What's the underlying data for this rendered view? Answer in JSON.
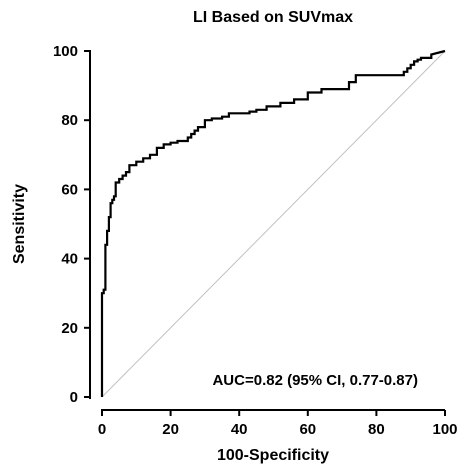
{
  "chart_data": {
    "type": "line",
    "title": "LI Based on SUVmax",
    "xlabel": "100-Specificity",
    "ylabel": "Sensitivity",
    "xlim": [
      0,
      100
    ],
    "ylim": [
      0,
      100
    ],
    "xticks": [
      0,
      20,
      40,
      60,
      80,
      100
    ],
    "yticks": [
      0,
      20,
      40,
      60,
      80,
      100
    ],
    "grid": false,
    "annotation": "AUC=0.82 (95% CI, 0.77-0.87)",
    "reference_line": {
      "x": [
        0,
        100
      ],
      "y": [
        0,
        100
      ],
      "color": "#c0c0c0"
    },
    "series": [
      {
        "color": "#000000",
        "x": [
          0,
          0,
          0.5,
          0.5,
          1,
          1,
          1.5,
          1.5,
          2,
          2,
          2.5,
          2.5,
          3,
          3,
          3.5,
          3.5,
          4,
          4,
          5,
          5,
          6,
          6,
          7,
          7,
          8,
          8,
          10,
          10,
          12,
          12,
          14,
          14,
          16,
          16,
          18,
          18,
          20,
          20,
          22,
          22,
          25,
          25,
          26,
          26,
          27,
          27,
          28,
          28,
          30,
          30,
          32,
          32,
          35,
          35,
          37,
          37,
          43,
          43,
          45,
          45,
          48,
          48,
          52,
          52,
          56,
          56,
          60,
          60,
          64,
          64,
          72,
          72,
          74,
          74,
          88,
          88,
          89,
          89,
          90,
          90,
          91,
          91,
          92,
          92,
          93,
          93,
          96,
          96,
          100
        ],
        "y": [
          0,
          30,
          30,
          31,
          31,
          44,
          44,
          48,
          48,
          52,
          52,
          56,
          56,
          57,
          57,
          58,
          58,
          62,
          62,
          63,
          63,
          64,
          64,
          65,
          65,
          67,
          67,
          68,
          68,
          69,
          69,
          70,
          70,
          72,
          72,
          73,
          73,
          73.5,
          73.5,
          74,
          74,
          75,
          75,
          76,
          76,
          77,
          77,
          78,
          78,
          80,
          80,
          80.5,
          80.5,
          81,
          81,
          82,
          82,
          82.5,
          82.5,
          83,
          83,
          84,
          84,
          85,
          85,
          86,
          86,
          88,
          88,
          89,
          89,
          91,
          91,
          93,
          93,
          94,
          94,
          95,
          95,
          96,
          96,
          97,
          97,
          97.5,
          97.5,
          98,
          98,
          99,
          100
        ]
      }
    ]
  }
}
